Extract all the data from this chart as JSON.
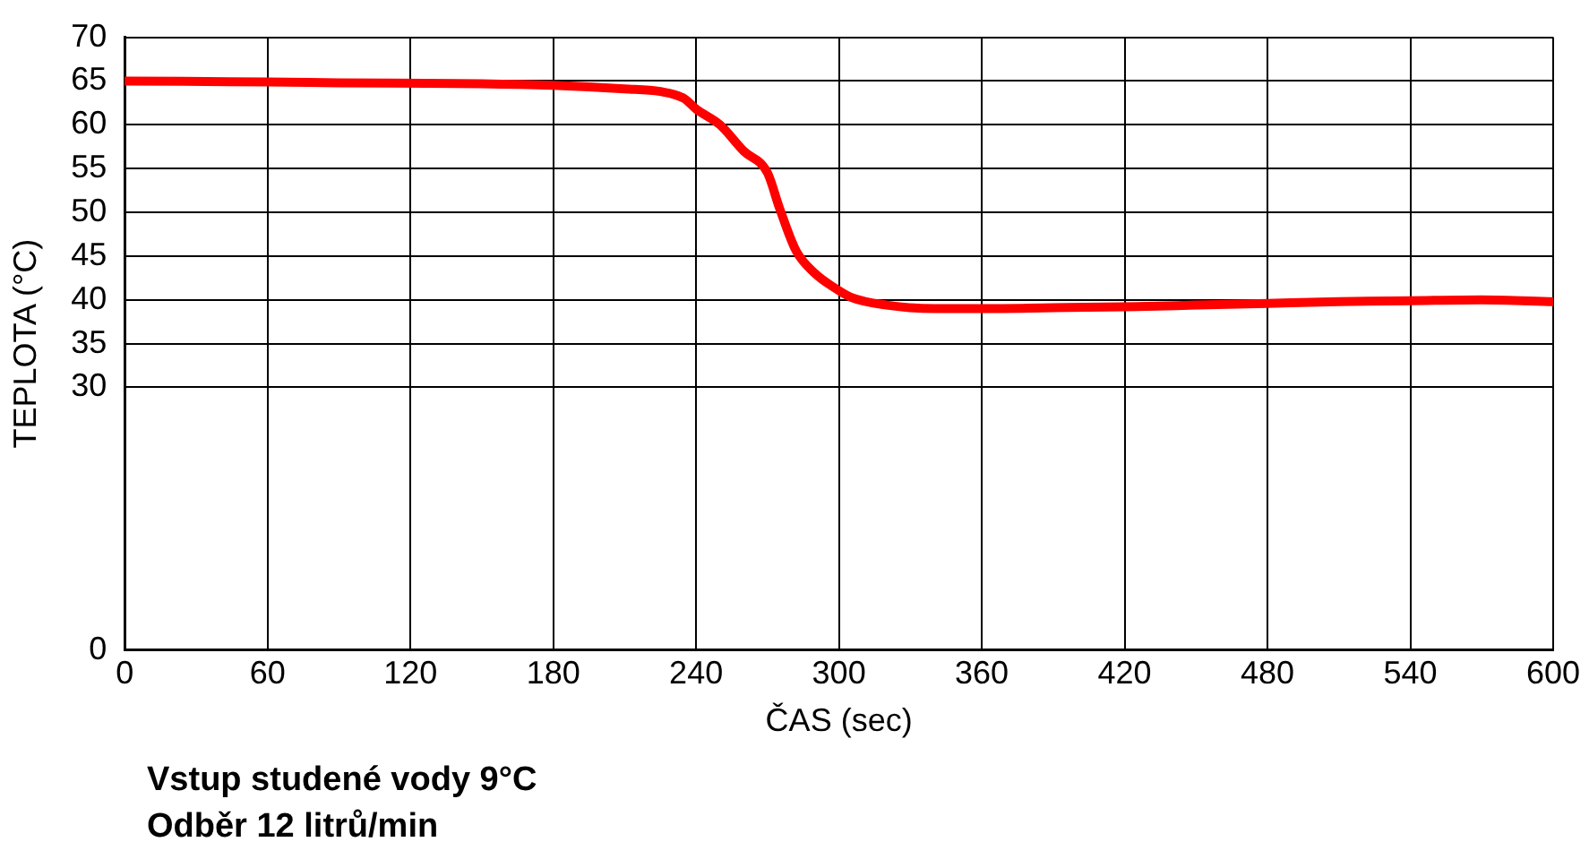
{
  "chart_data": {
    "type": "line",
    "xlabel": "ČAS (sec)",
    "ylabel": "TEPLOTA (°C)",
    "x": [
      0,
      60,
      90,
      150,
      180,
      210,
      225,
      235,
      240,
      250,
      260,
      270,
      275,
      282,
      290,
      298,
      305,
      320,
      340,
      360,
      390,
      420,
      450,
      480,
      510,
      540,
      570,
      600
    ],
    "series": [
      {
        "color": "#ff0000",
        "values": [
          65,
          64.9,
          64.8,
          64.7,
          64.5,
          64.1,
          63.8,
          63.0,
          61.8,
          60,
          57,
          54.5,
          50.5,
          45.6,
          43,
          41.4,
          40.3,
          39.4,
          39.0,
          39.0,
          39.1,
          39.2,
          39.4,
          39.6,
          39.8,
          39.9,
          40.0,
          39.8
        ]
      }
    ],
    "xlim": [
      0,
      600
    ],
    "xticks": [
      0,
      60,
      120,
      180,
      240,
      300,
      360,
      420,
      480,
      540,
      600
    ],
    "ylim": [
      0,
      70
    ],
    "yticks": [
      0,
      30,
      35,
      40,
      45,
      50,
      55,
      60,
      65,
      70
    ],
    "grid": true,
    "marker": "none",
    "line_style": "solid",
    "legend": false,
    "annotations": [
      "Vstup studené vody 9°C",
      "Odběr 12 litrů/min"
    ]
  }
}
